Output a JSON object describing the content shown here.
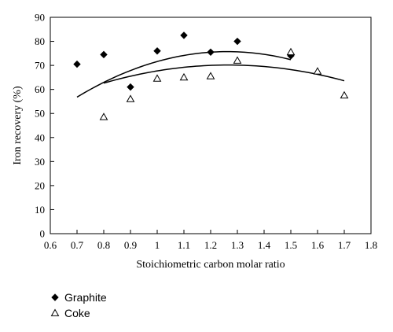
{
  "chart_data": {
    "type": "scatter",
    "xlabel": "Stoichiometric carbon molar ratio",
    "ylabel": "Iron recovery (%)",
    "xlim": [
      0.6,
      1.8
    ],
    "ylim": [
      0,
      90
    ],
    "x_ticks": [
      "0.6",
      "0.7",
      "0.8",
      "0.9",
      "1",
      "1.1",
      "1.2",
      "1.3",
      "1.4",
      "1.5",
      "1.6",
      "1.7",
      "1.8"
    ],
    "y_ticks": [
      "0",
      "10",
      "20",
      "30",
      "40",
      "50",
      "60",
      "70",
      "80",
      "90"
    ],
    "grid": false,
    "legend_position": "bottom-left",
    "series": [
      {
        "name": "Graphite",
        "marker": "filled-diamond",
        "color": "#000000",
        "x": [
          0.7,
          0.8,
          0.9,
          1.0,
          1.1,
          1.2,
          1.3,
          1.5
        ],
        "y": [
          70.5,
          74.5,
          61,
          76,
          82.5,
          75.5,
          80,
          74
        ],
        "trendline": {
          "type": "quadratic",
          "x_range": [
            0.7,
            1.5
          ],
          "coefficients": [
            -19.5,
            150.8,
            -59.7
          ]
        }
      },
      {
        "name": "Coke",
        "marker": "open-triangle",
        "color": "#000000",
        "x": [
          0.8,
          0.9,
          1.0,
          1.1,
          1.2,
          1.3,
          1.5,
          1.6,
          1.7
        ],
        "y": [
          48.5,
          56,
          64.5,
          65,
          65.5,
          72,
          75.5,
          67.5,
          57.5
        ],
        "trendline": {
          "type": "quadratic",
          "x_range": [
            0.8,
            1.7
          ],
          "coefficients": [
            14.4,
            88.1,
            -34.8
          ]
        }
      }
    ]
  }
}
